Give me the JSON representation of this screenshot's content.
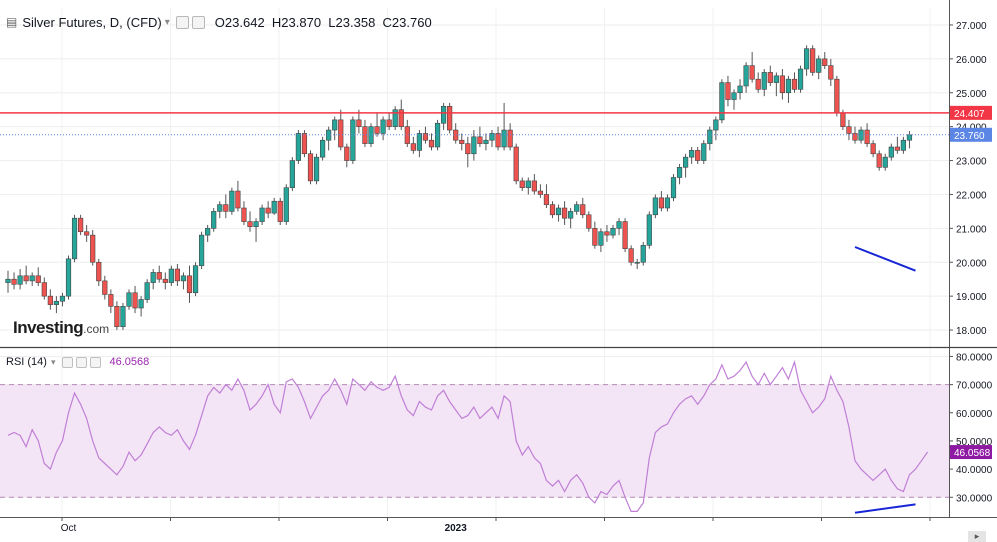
{
  "legend": {
    "symbol_text": "Silver Futures, D, (CFD)",
    "open_key": "O",
    "open_val": "23.642",
    "high_key": "H",
    "high_val": "23.870",
    "low_key": "L",
    "low_val": "23.358",
    "close_key": "C",
    "close_val": "23.760"
  },
  "rsi_legend": {
    "label": "RSI (14)",
    "value": "46.0568"
  },
  "logo": {
    "brand": "Investing",
    "suffix": ".com"
  },
  "icons": {
    "symbol": "menu-icon",
    "dropdown": "caret-down-icon",
    "settings": "gear-icon",
    "hide": "eye-icon",
    "close": "close-icon"
  },
  "colors": {
    "up": "#26a69a",
    "down": "#ef5350",
    "level_line": "#f23645",
    "last_price": "#5b86e5",
    "rsi": "#c07fd6",
    "rsi_band": "#f3e5f5",
    "divergence": "#1726d6"
  },
  "chart_data": [
    {
      "type": "candlestick",
      "title": "Silver Futures, D, (CFD)",
      "yticks": [
        18,
        19,
        20,
        21,
        22,
        23,
        24,
        25,
        26,
        27
      ],
      "ytick_labels": [
        "18.000",
        "19.000",
        "20.000",
        "21.000",
        "22.000",
        "23.000",
        "24.000",
        "25.000",
        "26.000",
        "27.000"
      ],
      "ylim": [
        17.5,
        27.5
      ],
      "horizontal_line": {
        "value": 24.407,
        "label": "24.407"
      },
      "last_price": {
        "value": 23.76,
        "label": "23.760"
      },
      "divergence_line": [
        [
          140,
          20.45
        ],
        [
          150,
          19.75
        ]
      ],
      "x_labels": [
        {
          "index": 10,
          "label": "Oct"
        },
        {
          "index": 74,
          "label": "2023"
        }
      ],
      "grid": true,
      "candles": [
        [
          19.4,
          19.75,
          19.1,
          19.5
        ],
        [
          19.5,
          19.7,
          19.2,
          19.35
        ],
        [
          19.35,
          19.8,
          19.2,
          19.6
        ],
        [
          19.6,
          19.9,
          19.35,
          19.45
        ],
        [
          19.45,
          19.7,
          19.3,
          19.6
        ],
        [
          19.6,
          19.85,
          19.3,
          19.4
        ],
        [
          19.4,
          19.55,
          18.9,
          19.0
        ],
        [
          19.0,
          19.2,
          18.6,
          18.75
        ],
        [
          18.75,
          19.0,
          18.5,
          18.85
        ],
        [
          18.85,
          19.1,
          18.7,
          19.0
        ],
        [
          19.0,
          20.2,
          18.9,
          20.1
        ],
        [
          20.1,
          21.4,
          20.0,
          21.3
        ],
        [
          21.3,
          21.4,
          20.8,
          20.9
        ],
        [
          20.9,
          21.1,
          20.6,
          20.8
        ],
        [
          20.8,
          20.95,
          19.9,
          20.0
        ],
        [
          20.0,
          20.1,
          19.3,
          19.45
        ],
        [
          19.45,
          19.6,
          18.9,
          19.05
        ],
        [
          19.05,
          19.2,
          18.5,
          18.7
        ],
        [
          18.7,
          18.85,
          18.0,
          18.1
        ],
        [
          18.1,
          18.8,
          18.0,
          18.7
        ],
        [
          18.7,
          19.2,
          18.6,
          19.1
        ],
        [
          19.1,
          19.3,
          18.5,
          18.65
        ],
        [
          18.65,
          19.0,
          18.4,
          18.9
        ],
        [
          18.9,
          19.5,
          18.8,
          19.4
        ],
        [
          19.4,
          19.8,
          19.2,
          19.7
        ],
        [
          19.7,
          19.9,
          19.4,
          19.5
        ],
        [
          19.5,
          19.7,
          19.2,
          19.4
        ],
        [
          19.4,
          19.9,
          19.3,
          19.8
        ],
        [
          19.8,
          19.95,
          19.3,
          19.45
        ],
        [
          19.45,
          19.7,
          19.2,
          19.6
        ],
        [
          19.6,
          19.9,
          18.8,
          19.1
        ],
        [
          19.1,
          20.0,
          19.0,
          19.9
        ],
        [
          19.9,
          20.9,
          19.8,
          20.8
        ],
        [
          20.8,
          21.1,
          20.6,
          21.0
        ],
        [
          21.0,
          21.6,
          20.9,
          21.5
        ],
        [
          21.5,
          21.8,
          21.3,
          21.7
        ],
        [
          21.7,
          22.0,
          21.3,
          21.5
        ],
        [
          21.5,
          22.2,
          21.4,
          22.1
        ],
        [
          22.1,
          22.4,
          21.5,
          21.6
        ],
        [
          21.6,
          21.8,
          21.1,
          21.2
        ],
        [
          21.2,
          21.5,
          20.9,
          21.05
        ],
        [
          21.05,
          21.3,
          20.6,
          21.2
        ],
        [
          21.2,
          21.7,
          21.1,
          21.6
        ],
        [
          21.6,
          21.8,
          21.3,
          21.45
        ],
        [
          21.45,
          21.9,
          21.4,
          21.8
        ],
        [
          21.8,
          21.9,
          21.1,
          21.2
        ],
        [
          21.2,
          22.3,
          21.1,
          22.2
        ],
        [
          22.2,
          23.1,
          22.1,
          23.0
        ],
        [
          23.0,
          23.9,
          22.9,
          23.8
        ],
        [
          23.8,
          23.9,
          23.1,
          23.2
        ],
        [
          23.2,
          23.3,
          22.3,
          22.4
        ],
        [
          22.4,
          23.2,
          22.3,
          23.1
        ],
        [
          23.1,
          23.7,
          23.0,
          23.6
        ],
        [
          23.6,
          24.0,
          23.3,
          23.9
        ],
        [
          23.9,
          24.3,
          23.6,
          24.2
        ],
        [
          24.2,
          24.5,
          23.3,
          23.4
        ],
        [
          23.4,
          23.5,
          22.8,
          23.0
        ],
        [
          23.0,
          24.3,
          22.9,
          24.2
        ],
        [
          24.2,
          24.5,
          23.8,
          24.0
        ],
        [
          24.0,
          24.2,
          23.4,
          23.5
        ],
        [
          23.5,
          24.1,
          23.4,
          24.0
        ],
        [
          24.0,
          24.4,
          23.7,
          23.8
        ],
        [
          23.8,
          24.3,
          23.6,
          24.2
        ],
        [
          24.2,
          24.4,
          23.9,
          24.0
        ],
        [
          24.0,
          24.6,
          23.9,
          24.5
        ],
        [
          24.5,
          24.8,
          23.9,
          24.0
        ],
        [
          24.0,
          24.2,
          23.4,
          23.5
        ],
        [
          23.5,
          23.7,
          23.2,
          23.3
        ],
        [
          23.3,
          23.9,
          23.1,
          23.8
        ],
        [
          23.8,
          24.0,
          23.5,
          23.6
        ],
        [
          23.6,
          23.8,
          23.3,
          23.4
        ],
        [
          23.4,
          24.2,
          23.3,
          24.1
        ],
        [
          24.1,
          24.7,
          23.9,
          24.6
        ],
        [
          24.6,
          24.7,
          23.8,
          23.9
        ],
        [
          23.9,
          24.1,
          23.5,
          23.6
        ],
        [
          23.6,
          23.8,
          23.3,
          23.5
        ],
        [
          23.5,
          23.7,
          22.8,
          23.2
        ],
        [
          23.2,
          23.9,
          23.0,
          23.7
        ],
        [
          23.7,
          24.0,
          23.4,
          23.5
        ],
        [
          23.5,
          23.8,
          23.3,
          23.6
        ],
        [
          23.6,
          23.9,
          23.4,
          23.8
        ],
        [
          23.8,
          24.0,
          23.3,
          23.4
        ],
        [
          23.4,
          24.7,
          23.3,
          23.9
        ],
        [
          23.9,
          24.1,
          23.3,
          23.4
        ],
        [
          23.4,
          23.5,
          22.3,
          22.4
        ],
        [
          22.4,
          22.5,
          22.1,
          22.2
        ],
        [
          22.2,
          22.5,
          22.0,
          22.4
        ],
        [
          22.4,
          22.6,
          22.0,
          22.1
        ],
        [
          22.1,
          22.3,
          21.9,
          22.0
        ],
        [
          22.0,
          22.3,
          21.6,
          21.7
        ],
        [
          21.7,
          21.8,
          21.3,
          21.4
        ],
        [
          21.4,
          21.7,
          21.2,
          21.6
        ],
        [
          21.6,
          21.8,
          21.1,
          21.3
        ],
        [
          21.3,
          21.6,
          21.0,
          21.5
        ],
        [
          21.5,
          21.8,
          21.4,
          21.7
        ],
        [
          21.7,
          21.9,
          21.3,
          21.4
        ],
        [
          21.4,
          21.5,
          20.9,
          21.0
        ],
        [
          21.0,
          21.2,
          20.4,
          20.5
        ],
        [
          20.5,
          21.0,
          20.3,
          20.9
        ],
        [
          20.9,
          21.1,
          20.6,
          20.8
        ],
        [
          20.8,
          21.1,
          20.7,
          21.0
        ],
        [
          21.0,
          21.3,
          20.8,
          21.2
        ],
        [
          21.2,
          21.3,
          20.3,
          20.4
        ],
        [
          20.4,
          20.5,
          19.9,
          20.0
        ],
        [
          20.0,
          20.1,
          19.8,
          20.0
        ],
        [
          20.0,
          20.6,
          19.9,
          20.5
        ],
        [
          20.5,
          21.5,
          20.4,
          21.4
        ],
        [
          21.4,
          22.0,
          21.3,
          21.9
        ],
        [
          21.9,
          22.1,
          21.5,
          21.6
        ],
        [
          21.6,
          22.0,
          21.5,
          21.9
        ],
        [
          21.9,
          22.6,
          21.8,
          22.5
        ],
        [
          22.5,
          22.9,
          22.3,
          22.8
        ],
        [
          22.8,
          23.2,
          22.5,
          23.1
        ],
        [
          23.1,
          23.4,
          22.9,
          23.3
        ],
        [
          23.3,
          23.4,
          22.9,
          23.0
        ],
        [
          23.0,
          23.6,
          22.9,
          23.5
        ],
        [
          23.5,
          24.0,
          23.3,
          23.9
        ],
        [
          23.9,
          24.3,
          23.6,
          24.2
        ],
        [
          24.2,
          25.4,
          24.1,
          25.3
        ],
        [
          25.3,
          25.5,
          24.6,
          24.8
        ],
        [
          24.8,
          25.1,
          24.5,
          25.0
        ],
        [
          25.0,
          25.4,
          24.8,
          25.2
        ],
        [
          25.2,
          25.9,
          25.0,
          25.8
        ],
        [
          25.8,
          26.2,
          25.3,
          25.4
        ],
        [
          25.4,
          25.6,
          25.0,
          25.1
        ],
        [
          25.1,
          25.7,
          24.9,
          25.6
        ],
        [
          25.6,
          25.8,
          25.2,
          25.3
        ],
        [
          25.3,
          25.6,
          24.9,
          25.5
        ],
        [
          25.5,
          25.7,
          24.8,
          25.0
        ],
        [
          25.0,
          25.5,
          24.7,
          25.4
        ],
        [
          25.4,
          25.6,
          25.0,
          25.1
        ],
        [
          25.1,
          25.8,
          25.0,
          25.7
        ],
        [
          25.7,
          26.4,
          25.5,
          26.3
        ],
        [
          26.3,
          26.4,
          25.5,
          25.6
        ],
        [
          25.6,
          26.1,
          25.4,
          26.0
        ],
        [
          26.0,
          26.2,
          25.7,
          25.8
        ],
        [
          25.8,
          26.0,
          25.2,
          25.4
        ],
        [
          25.4,
          25.5,
          24.3,
          24.4
        ],
        [
          24.4,
          24.5,
          23.9,
          24.0
        ],
        [
          24.0,
          24.2,
          23.6,
          23.8
        ],
        [
          23.8,
          24.0,
          23.5,
          23.6
        ],
        [
          23.6,
          24.0,
          23.5,
          23.9
        ],
        [
          23.9,
          24.1,
          23.4,
          23.5
        ],
        [
          23.5,
          23.6,
          23.1,
          23.2
        ],
        [
          23.2,
          23.3,
          22.7,
          22.8
        ],
        [
          22.8,
          23.2,
          22.7,
          23.1
        ],
        [
          23.1,
          23.5,
          23.0,
          23.4
        ],
        [
          23.4,
          23.7,
          23.2,
          23.3
        ],
        [
          23.3,
          23.7,
          23.2,
          23.6
        ],
        [
          23.6,
          23.87,
          23.36,
          23.76
        ]
      ]
    },
    {
      "type": "line",
      "title": "RSI (14)",
      "yticks": [
        30,
        40,
        50,
        60,
        70,
        80
      ],
      "ytick_labels": [
        "30.0000",
        "40.0000",
        "50.0000",
        "60.0000",
        "70.0000",
        "80.0000"
      ],
      "ylim": [
        23,
        83
      ],
      "band": [
        30,
        70
      ],
      "last_value": {
        "value": 46.0568,
        "label": "46.0568"
      },
      "divergence_line": [
        [
          140,
          24.5
        ],
        [
          150,
          27.5
        ]
      ],
      "values": [
        52,
        53,
        52,
        48,
        54,
        50,
        42,
        40,
        46,
        50,
        60,
        67,
        63,
        58,
        50,
        44,
        42,
        40,
        38,
        41,
        46,
        43,
        45,
        49,
        53,
        55,
        53,
        52,
        54,
        50,
        47,
        52,
        59,
        66,
        69,
        67,
        70,
        68,
        72,
        68,
        61,
        63,
        66,
        70,
        63,
        60,
        71,
        72,
        69,
        64,
        58,
        62,
        66,
        68,
        72,
        68,
        63,
        72,
        70,
        68,
        71,
        69,
        68,
        69,
        73,
        66,
        61,
        59,
        64,
        62,
        61,
        66,
        68,
        64,
        61,
        58,
        59,
        62,
        58,
        60,
        62,
        58,
        66,
        64,
        50,
        45,
        48,
        44,
        42,
        36,
        34,
        36,
        32,
        36,
        38,
        35,
        30,
        28,
        32,
        31,
        34,
        36,
        30,
        25,
        25,
        28,
        44,
        53,
        55,
        56,
        60,
        63,
        65,
        66,
        63,
        66,
        70,
        72,
        77,
        72,
        73,
        75,
        78,
        73,
        70,
        74,
        70,
        73,
        76,
        72,
        78,
        68,
        64,
        60,
        62,
        65,
        73,
        68,
        64,
        55,
        43,
        40,
        38,
        36,
        38,
        40,
        36,
        33,
        32,
        38,
        40,
        43,
        46.06
      ]
    }
  ]
}
